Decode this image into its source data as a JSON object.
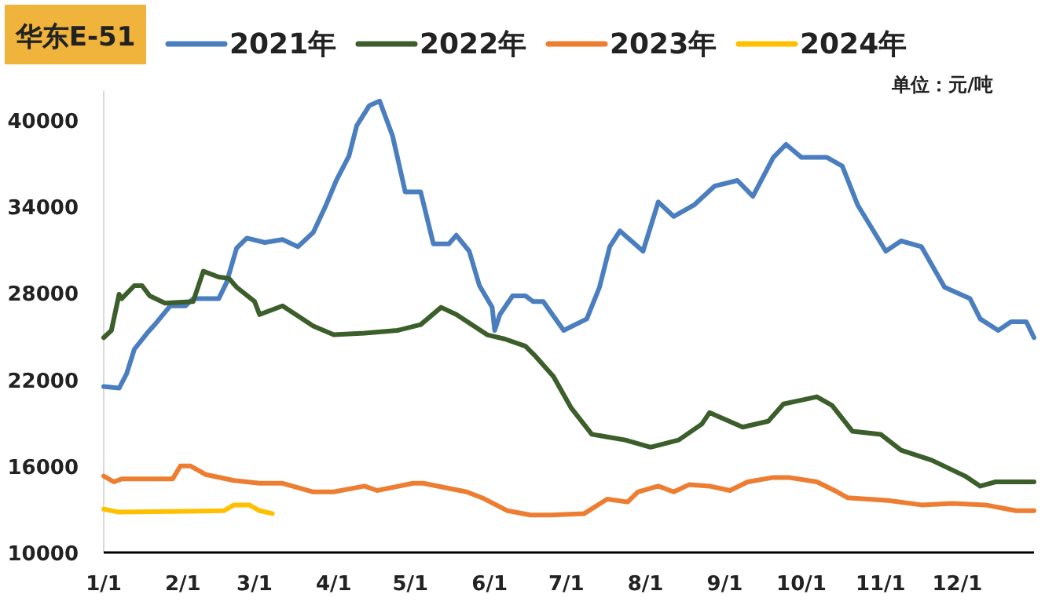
{
  "chart_data": {
    "type": "line",
    "title": "华东E-51",
    "annotations": [
      "单位：元/吨"
    ],
    "xlim": [
      "--01-01",
      "--12-31"
    ],
    "xticks": [
      {
        "value": "--01-01",
        "label": "1/1"
      },
      {
        "value": "--02-01",
        "label": "2/1"
      },
      {
        "value": "--03-01",
        "label": "3/1"
      },
      {
        "value": "--04-01",
        "label": "4/1"
      },
      {
        "value": "--05-01",
        "label": "5/1"
      },
      {
        "value": "--06-01",
        "label": "6/1"
      },
      {
        "value": "--07-01",
        "label": "7/1"
      },
      {
        "value": "--08-01",
        "label": "8/1"
      },
      {
        "value": "--09-01",
        "label": "9/1"
      },
      {
        "value": "--10-01",
        "label": "10/1"
      },
      {
        "value": "--11-01",
        "label": "11/1"
      },
      {
        "value": "--12-01",
        "label": "12/1"
      }
    ],
    "ylim": [
      10000,
      42000
    ],
    "yticks": [
      10000,
      16000,
      22000,
      28000,
      34000,
      40000
    ],
    "grid": false,
    "legend": "top",
    "marker": "none",
    "line_style": "solid",
    "series": [
      {
        "name": "2021年",
        "color": "#4a7ebf",
        "x": [
          "--01-01",
          "--01-07",
          "--01-10",
          "--01-13",
          "--01-18",
          "--01-21",
          "--01-27",
          "--02-02",
          "--02-05",
          "--02-15",
          "--02-18",
          "--02-22",
          "--02-26",
          "--03-05",
          "--03-12",
          "--03-18",
          "--03-24",
          "--03-29",
          "--04-02",
          "--04-07",
          "--04-10",
          "--04-15",
          "--04-19",
          "--04-24",
          "--04-29",
          "--05-05",
          "--05-10",
          "--05-16",
          "--05-19",
          "--05-24",
          "--05-28",
          "--06-02",
          "--06-03",
          "--06-05",
          "--06-10",
          "--06-15",
          "--06-18",
          "--06-22",
          "--06-30",
          "--07-09",
          "--07-14",
          "--07-18",
          "--07-22",
          "--07-31",
          "--08-06",
          "--08-12",
          "--08-20",
          "--08-28",
          "--09-06",
          "--09-12",
          "--09-20",
          "--09-25",
          "--10-01",
          "--10-11",
          "--10-17",
          "--10-23",
          "--11-03",
          "--11-09",
          "--11-17",
          "--11-26",
          "--12-06",
          "--12-10",
          "--12-17",
          "--12-22",
          "--12-28",
          "--12-31"
        ],
        "values": [
          21500,
          21400,
          22400,
          24100,
          25200,
          25800,
          27100,
          27100,
          27600,
          27600,
          28700,
          31100,
          31800,
          31500,
          31700,
          31200,
          32200,
          34100,
          35800,
          37500,
          39600,
          41000,
          41300,
          38900,
          35000,
          35000,
          31400,
          31400,
          32000,
          30900,
          28500,
          27000,
          25400,
          26500,
          27800,
          27800,
          27400,
          27400,
          25400,
          26200,
          28400,
          31200,
          32300,
          30900,
          34300,
          33300,
          34100,
          35400,
          35800,
          34700,
          37400,
          38300,
          37400,
          37400,
          36800,
          34100,
          30900,
          31600,
          31200,
          28400,
          27600,
          26200,
          25400,
          26000,
          26000,
          24900
        ]
      },
      {
        "name": "2022年",
        "color": "#3b5e2b",
        "x": [
          "--01-01",
          "--01-04",
          "--01-07",
          "--01-08",
          "--01-13",
          "--01-16",
          "--01-19",
          "--01-25",
          "--02-05",
          "--02-09",
          "--02-15",
          "--02-19",
          "--02-22",
          "--03-01",
          "--03-03",
          "--03-12",
          "--03-24",
          "--04-01",
          "--04-13",
          "--04-26",
          "--05-05",
          "--05-13",
          "--05-19",
          "--05-31",
          "--06-07",
          "--06-15",
          "--06-19",
          "--06-26",
          "--07-03",
          "--07-11",
          "--07-24",
          "--08-03",
          "--08-14",
          "--08-23",
          "--08-26",
          "--09-08",
          "--09-18",
          "--09-24",
          "--10-07",
          "--10-13",
          "--10-21",
          "--11-01",
          "--11-09",
          "--11-21",
          "--12-04",
          "--12-10",
          "--12-16",
          "--12-31"
        ],
        "values": [
          24900,
          25400,
          27900,
          27600,
          28500,
          28500,
          27800,
          27300,
          27400,
          29500,
          29100,
          29000,
          28400,
          27400,
          26500,
          27100,
          25700,
          25100,
          25200,
          25400,
          25800,
          27000,
          26500,
          25100,
          24800,
          24300,
          23600,
          22200,
          20000,
          18200,
          17800,
          17300,
          17800,
          18900,
          19700,
          18700,
          19100,
          20300,
          20800,
          20200,
          18400,
          18200,
          17100,
          16400,
          15300,
          14600,
          14900,
          14900
        ]
      },
      {
        "name": "2023年",
        "color": "#ed7d31",
        "x": [
          "--01-01",
          "--01-05",
          "--01-08",
          "--01-28",
          "--01-31",
          "--02-04",
          "--02-10",
          "--02-21",
          "--03-03",
          "--03-12",
          "--03-24",
          "--04-01",
          "--04-13",
          "--04-18",
          "--05-02",
          "--05-06",
          "--05-23",
          "--05-29",
          "--06-08",
          "--06-17",
          "--06-25",
          "--07-08",
          "--07-17",
          "--07-25",
          "--07-29",
          "--08-06",
          "--08-12",
          "--08-18",
          "--08-26",
          "--09-03",
          "--09-10",
          "--09-20",
          "--09-26",
          "--10-07",
          "--10-15",
          "--10-19",
          "--11-04",
          "--11-17",
          "--11-29",
          "--12-12",
          "--12-24",
          "--12-31"
        ],
        "values": [
          15300,
          14900,
          15100,
          15100,
          16000,
          16000,
          15400,
          15000,
          14800,
          14800,
          14200,
          14200,
          14600,
          14300,
          14800,
          14800,
          14200,
          13800,
          12900,
          12600,
          12600,
          12700,
          13700,
          13500,
          14200,
          14600,
          14200,
          14700,
          14600,
          14300,
          14900,
          15200,
          15200,
          14900,
          14200,
          13800,
          13600,
          13300,
          13400,
          13300,
          12900,
          12900
        ]
      },
      {
        "name": "2024年",
        "color": "#ffc000",
        "x": [
          "--01-01",
          "--01-07",
          "--02-17",
          "--02-21",
          "--02-27",
          "--03-03",
          "--03-08"
        ],
        "values": [
          13000,
          12800,
          12900,
          13300,
          13300,
          12900,
          12700
        ]
      }
    ]
  }
}
